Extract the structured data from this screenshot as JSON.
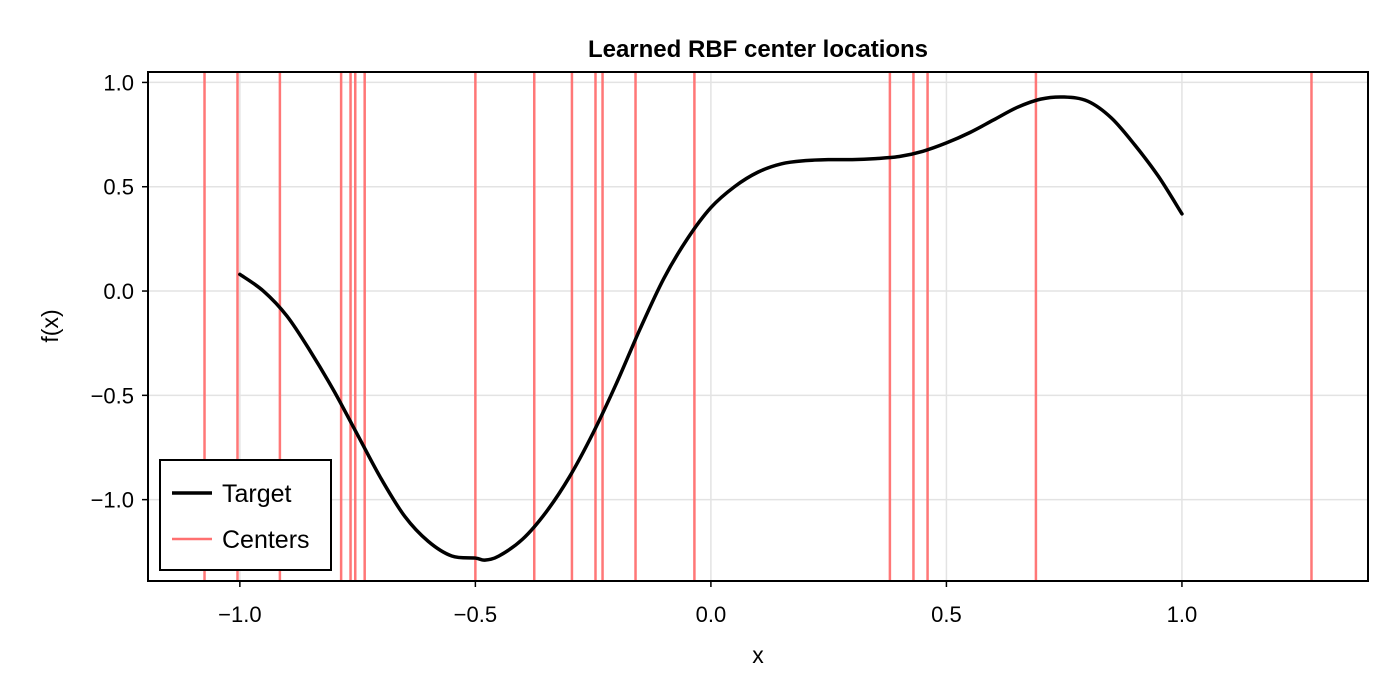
{
  "chart_data": {
    "type": "line",
    "title": "Learned RBF center locations",
    "xlabel": "x",
    "ylabel": "f(x)",
    "xlim": [
      -1.195,
      1.395
    ],
    "ylim": [
      -1.39,
      1.05
    ],
    "xticks": [
      -1.0,
      -0.5,
      0.0,
      0.5,
      1.0
    ],
    "xtick_labels": [
      "−1.0",
      "−0.5",
      "0.0",
      "0.5",
      "1.0"
    ],
    "yticks": [
      -1.0,
      -0.5,
      0.0,
      0.5,
      1.0
    ],
    "ytick_labels": [
      "−1.0",
      "−0.5",
      "0.0",
      "0.5",
      "1.0"
    ],
    "grid": true,
    "legend_position": "bottom-left",
    "series": [
      {
        "name": "Target",
        "kind": "line",
        "color": "#000000",
        "x": [
          -1.0,
          -0.95,
          -0.9,
          -0.85,
          -0.8,
          -0.75,
          -0.7,
          -0.65,
          -0.6,
          -0.55,
          -0.5,
          -0.48,
          -0.45,
          -0.4,
          -0.35,
          -0.3,
          -0.25,
          -0.2,
          -0.15,
          -0.1,
          -0.05,
          0.0,
          0.05,
          0.1,
          0.15,
          0.2,
          0.25,
          0.3,
          0.35,
          0.4,
          0.45,
          0.5,
          0.55,
          0.6,
          0.65,
          0.7,
          0.75,
          0.8,
          0.85,
          0.9,
          0.95,
          1.0
        ],
        "y": [
          0.08,
          0.0,
          -0.12,
          -0.29,
          -0.48,
          -0.69,
          -0.9,
          -1.08,
          -1.2,
          -1.27,
          -1.28,
          -1.29,
          -1.27,
          -1.19,
          -1.06,
          -0.89,
          -0.68,
          -0.44,
          -0.18,
          0.06,
          0.25,
          0.4,
          0.5,
          0.57,
          0.61,
          0.625,
          0.63,
          0.63,
          0.635,
          0.645,
          0.67,
          0.71,
          0.76,
          0.82,
          0.88,
          0.92,
          0.93,
          0.91,
          0.83,
          0.7,
          0.55,
          0.37
        ]
      },
      {
        "name": "Centers",
        "kind": "vlines",
        "color": "#ff7070",
        "x": [
          -1.075,
          -1.005,
          -0.915,
          -0.785,
          -0.765,
          -0.755,
          -0.735,
          -0.5,
          -0.375,
          -0.295,
          -0.245,
          -0.23,
          -0.16,
          -0.035,
          0.38,
          0.43,
          0.46,
          0.69,
          1.275
        ]
      }
    ]
  }
}
